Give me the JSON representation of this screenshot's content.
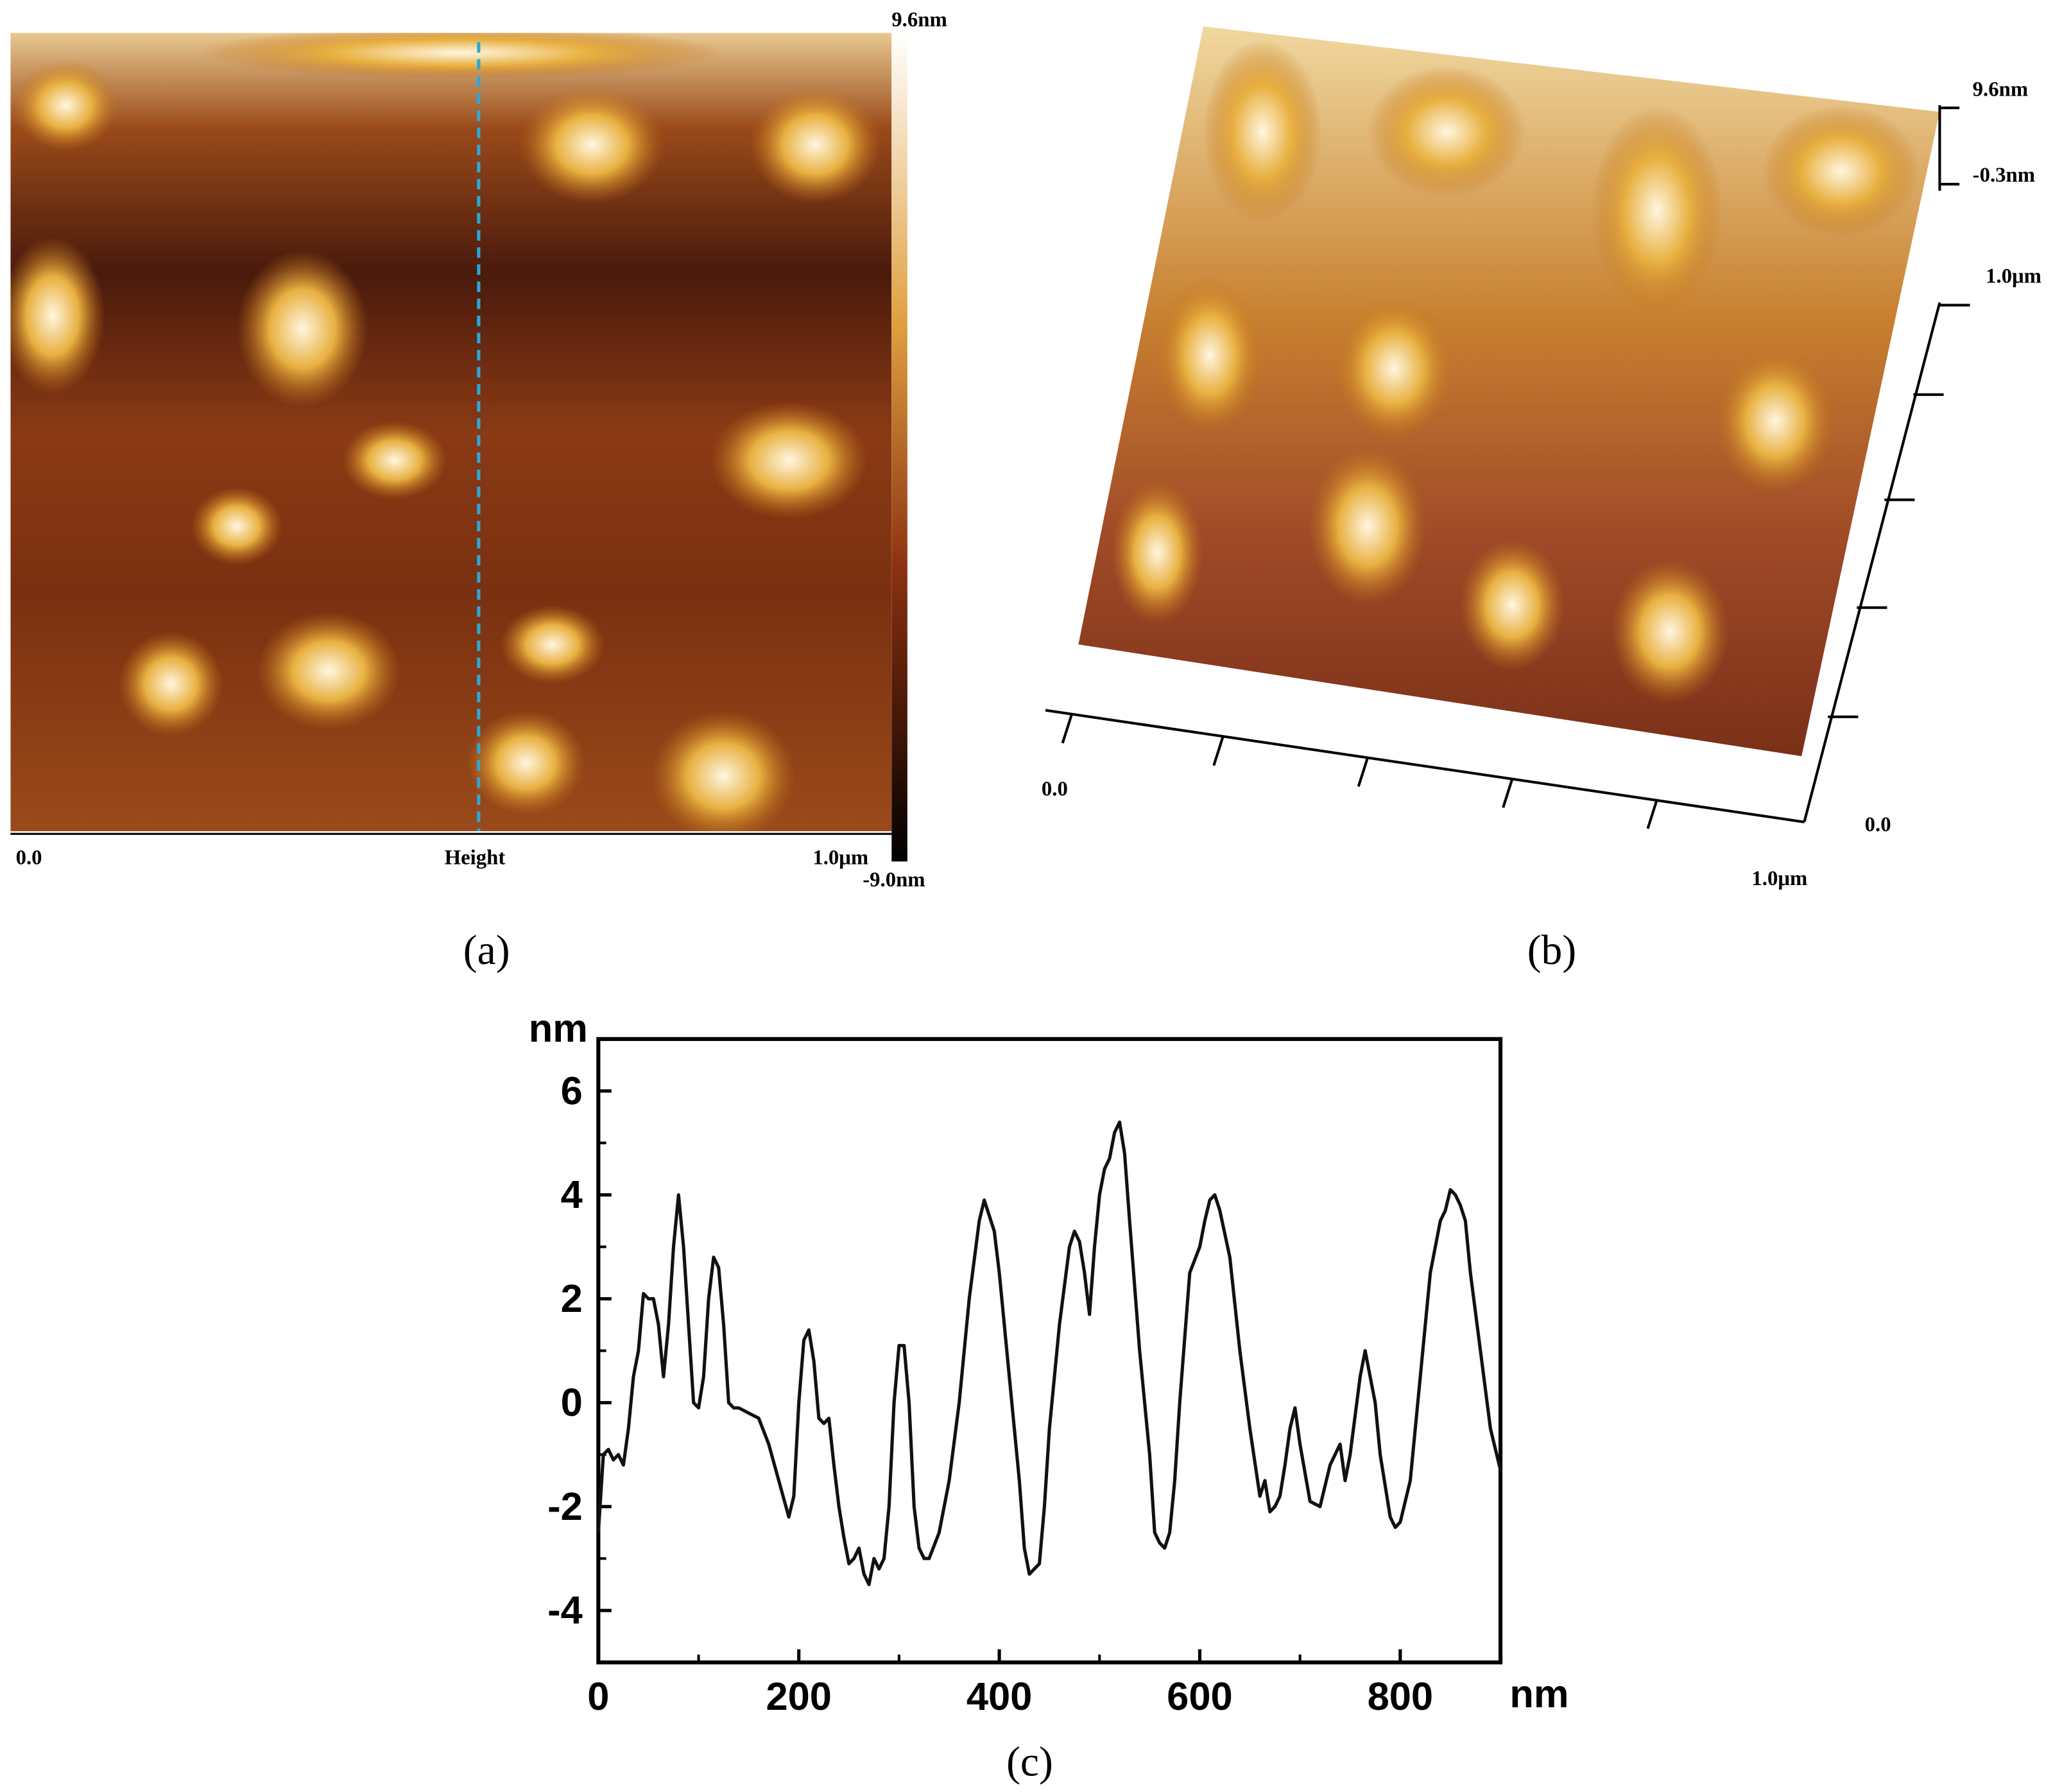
{
  "panel_a": {
    "scale_top": "9.6nm",
    "scale_bottom": "-9.0nm",
    "x_start": "0.0",
    "x_label": "Height",
    "x_end": "1.0μm",
    "caption": "(a)"
  },
  "panel_b": {
    "z_top": "9.6nm",
    "z_mid": "-0.3nm",
    "y_end": "1.0μm",
    "x_start": "0.0",
    "y_start": "0.0",
    "x_end": "1.0μm",
    "caption": "(b)"
  },
  "chart_data": {
    "type": "line",
    "caption": "(c)",
    "xlabel": "nm",
    "ylabel": "nm",
    "color": "#111111",
    "x": [
      0,
      5,
      10,
      15,
      20,
      25,
      30,
      35,
      40,
      45,
      50,
      55,
      60,
      65,
      70,
      75,
      80,
      85,
      90,
      95,
      100,
      105,
      110,
      115,
      120,
      125,
      130,
      135,
      140,
      150,
      160,
      170,
      180,
      190,
      195,
      200,
      205,
      210,
      215,
      220,
      225,
      230,
      235,
      240,
      245,
      250,
      255,
      260,
      265,
      270,
      275,
      280,
      285,
      290,
      295,
      300,
      305,
      310,
      315,
      320,
      325,
      330,
      340,
      350,
      360,
      370,
      380,
      385,
      390,
      395,
      400,
      410,
      420,
      425,
      430,
      435,
      440,
      445,
      450,
      460,
      470,
      475,
      480,
      485,
      490,
      495,
      500,
      505,
      510,
      515,
      520,
      525,
      530,
      540,
      550,
      555,
      560,
      565,
      570,
      575,
      580,
      590,
      600,
      605,
      610,
      615,
      620,
      630,
      640,
      650,
      660,
      665,
      670,
      675,
      680,
      685,
      690,
      695,
      700,
      710,
      720,
      730,
      740,
      745,
      750,
      760,
      765,
      770,
      775,
      780,
      790,
      795,
      800,
      810,
      820,
      830,
      840,
      845,
      850,
      855,
      860,
      865,
      870,
      880,
      890,
      900
    ],
    "values": [
      -2.5,
      -1.0,
      -0.9,
      -1.1,
      -1.0,
      -1.2,
      -0.5,
      0.5,
      1.0,
      2.1,
      2.0,
      2.0,
      1.5,
      0.5,
      1.5,
      3.0,
      4.0,
      3.0,
      1.5,
      0.0,
      -0.1,
      0.5,
      2.0,
      2.8,
      2.6,
      1.5,
      0.0,
      -0.1,
      -0.1,
      -0.2,
      -0.3,
      -0.8,
      -1.5,
      -2.2,
      -1.8,
      0.0,
      1.2,
      1.4,
      0.8,
      -0.3,
      -0.4,
      -0.3,
      -1.2,
      -2.0,
      -2.6,
      -3.1,
      -3.0,
      -2.8,
      -3.3,
      -3.5,
      -3.0,
      -3.2,
      -3.0,
      -2.0,
      0.0,
      1.1,
      1.1,
      0.0,
      -2.0,
      -2.8,
      -3.0,
      -3.0,
      -2.5,
      -1.5,
      0.0,
      2.0,
      3.5,
      3.9,
      3.6,
      3.3,
      2.5,
      0.5,
      -1.5,
      -2.8,
      -3.3,
      -3.2,
      -3.1,
      -2.0,
      -0.5,
      1.5,
      3.0,
      3.3,
      3.1,
      2.5,
      1.7,
      3.0,
      4.0,
      4.5,
      4.7,
      5.2,
      5.4,
      4.8,
      3.5,
      1.0,
      -1.0,
      -2.5,
      -2.7,
      -2.8,
      -2.5,
      -1.5,
      0.0,
      2.5,
      3.0,
      3.5,
      3.9,
      4.0,
      3.7,
      2.8,
      1.0,
      -0.5,
      -1.8,
      -1.5,
      -2.1,
      -2.0,
      -1.8,
      -1.2,
      -0.5,
      -0.1,
      -0.8,
      -1.9,
      -2.0,
      -1.2,
      -0.8,
      -1.5,
      -1.0,
      0.5,
      1.0,
      0.5,
      0.0,
      -1.0,
      -2.2,
      -2.4,
      -2.3,
      -1.5,
      0.5,
      2.5,
      3.5,
      3.7,
      4.1,
      4.0,
      3.8,
      3.5,
      2.5,
      1.0,
      -0.5,
      -1.3
    ],
    "xlim": [
      0,
      900
    ],
    "xticks": [
      0,
      200,
      400,
      600,
      800
    ],
    "xticks_minor": [
      100,
      300,
      500,
      700
    ],
    "ylim": [
      -5,
      7
    ],
    "yticks": [
      -4,
      -2,
      0,
      2,
      4,
      6
    ],
    "yticks_minor": [
      -5,
      -3,
      -1,
      1,
      3,
      5
    ]
  }
}
